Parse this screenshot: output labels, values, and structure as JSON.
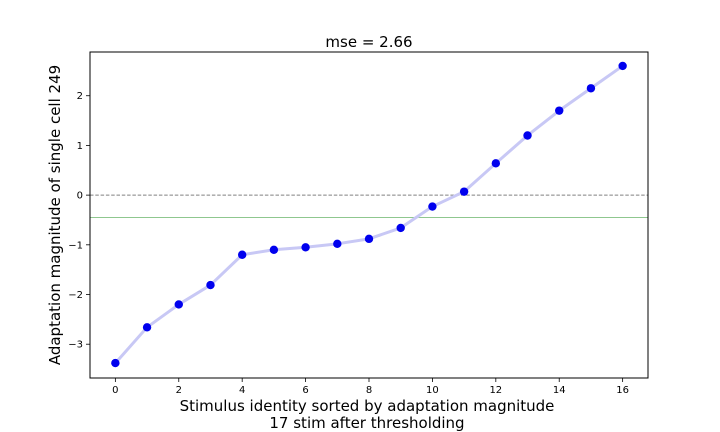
{
  "chart_data": {
    "type": "line",
    "title": "mse = 2.66",
    "xlabel_lines": [
      "Stimulus identity sorted by adaptation magnitude",
      "17 stim after thresholding"
    ],
    "ylabel": "Adaptation magnitude of single cell 249",
    "xlim": [
      -0.8,
      16.8
    ],
    "ylim": [
      -3.68,
      2.88
    ],
    "xticks": [
      0,
      2,
      4,
      6,
      8,
      10,
      12,
      14,
      16
    ],
    "yticks": [
      -3,
      -2,
      -1,
      0,
      1,
      2
    ],
    "x": [
      0,
      1,
      2,
      3,
      4,
      5,
      6,
      7,
      8,
      9,
      10,
      11,
      12,
      13,
      14,
      15,
      16
    ],
    "y": [
      -3.38,
      -2.66,
      -2.2,
      -1.81,
      -1.2,
      -1.1,
      -1.05,
      -0.98,
      -0.88,
      -0.66,
      -0.23,
      0.07,
      0.64,
      1.2,
      1.7,
      2.15,
      2.6
    ],
    "reference_lines": [
      {
        "axis": "y",
        "value": 0,
        "style": "dashed",
        "color": "#808080"
      },
      {
        "axis": "y",
        "value": -0.45,
        "style": "solid",
        "color": "#7fbf7f"
      }
    ],
    "line_color": "#c8c8f5",
    "marker_color": "#0000ee",
    "grid": false
  }
}
